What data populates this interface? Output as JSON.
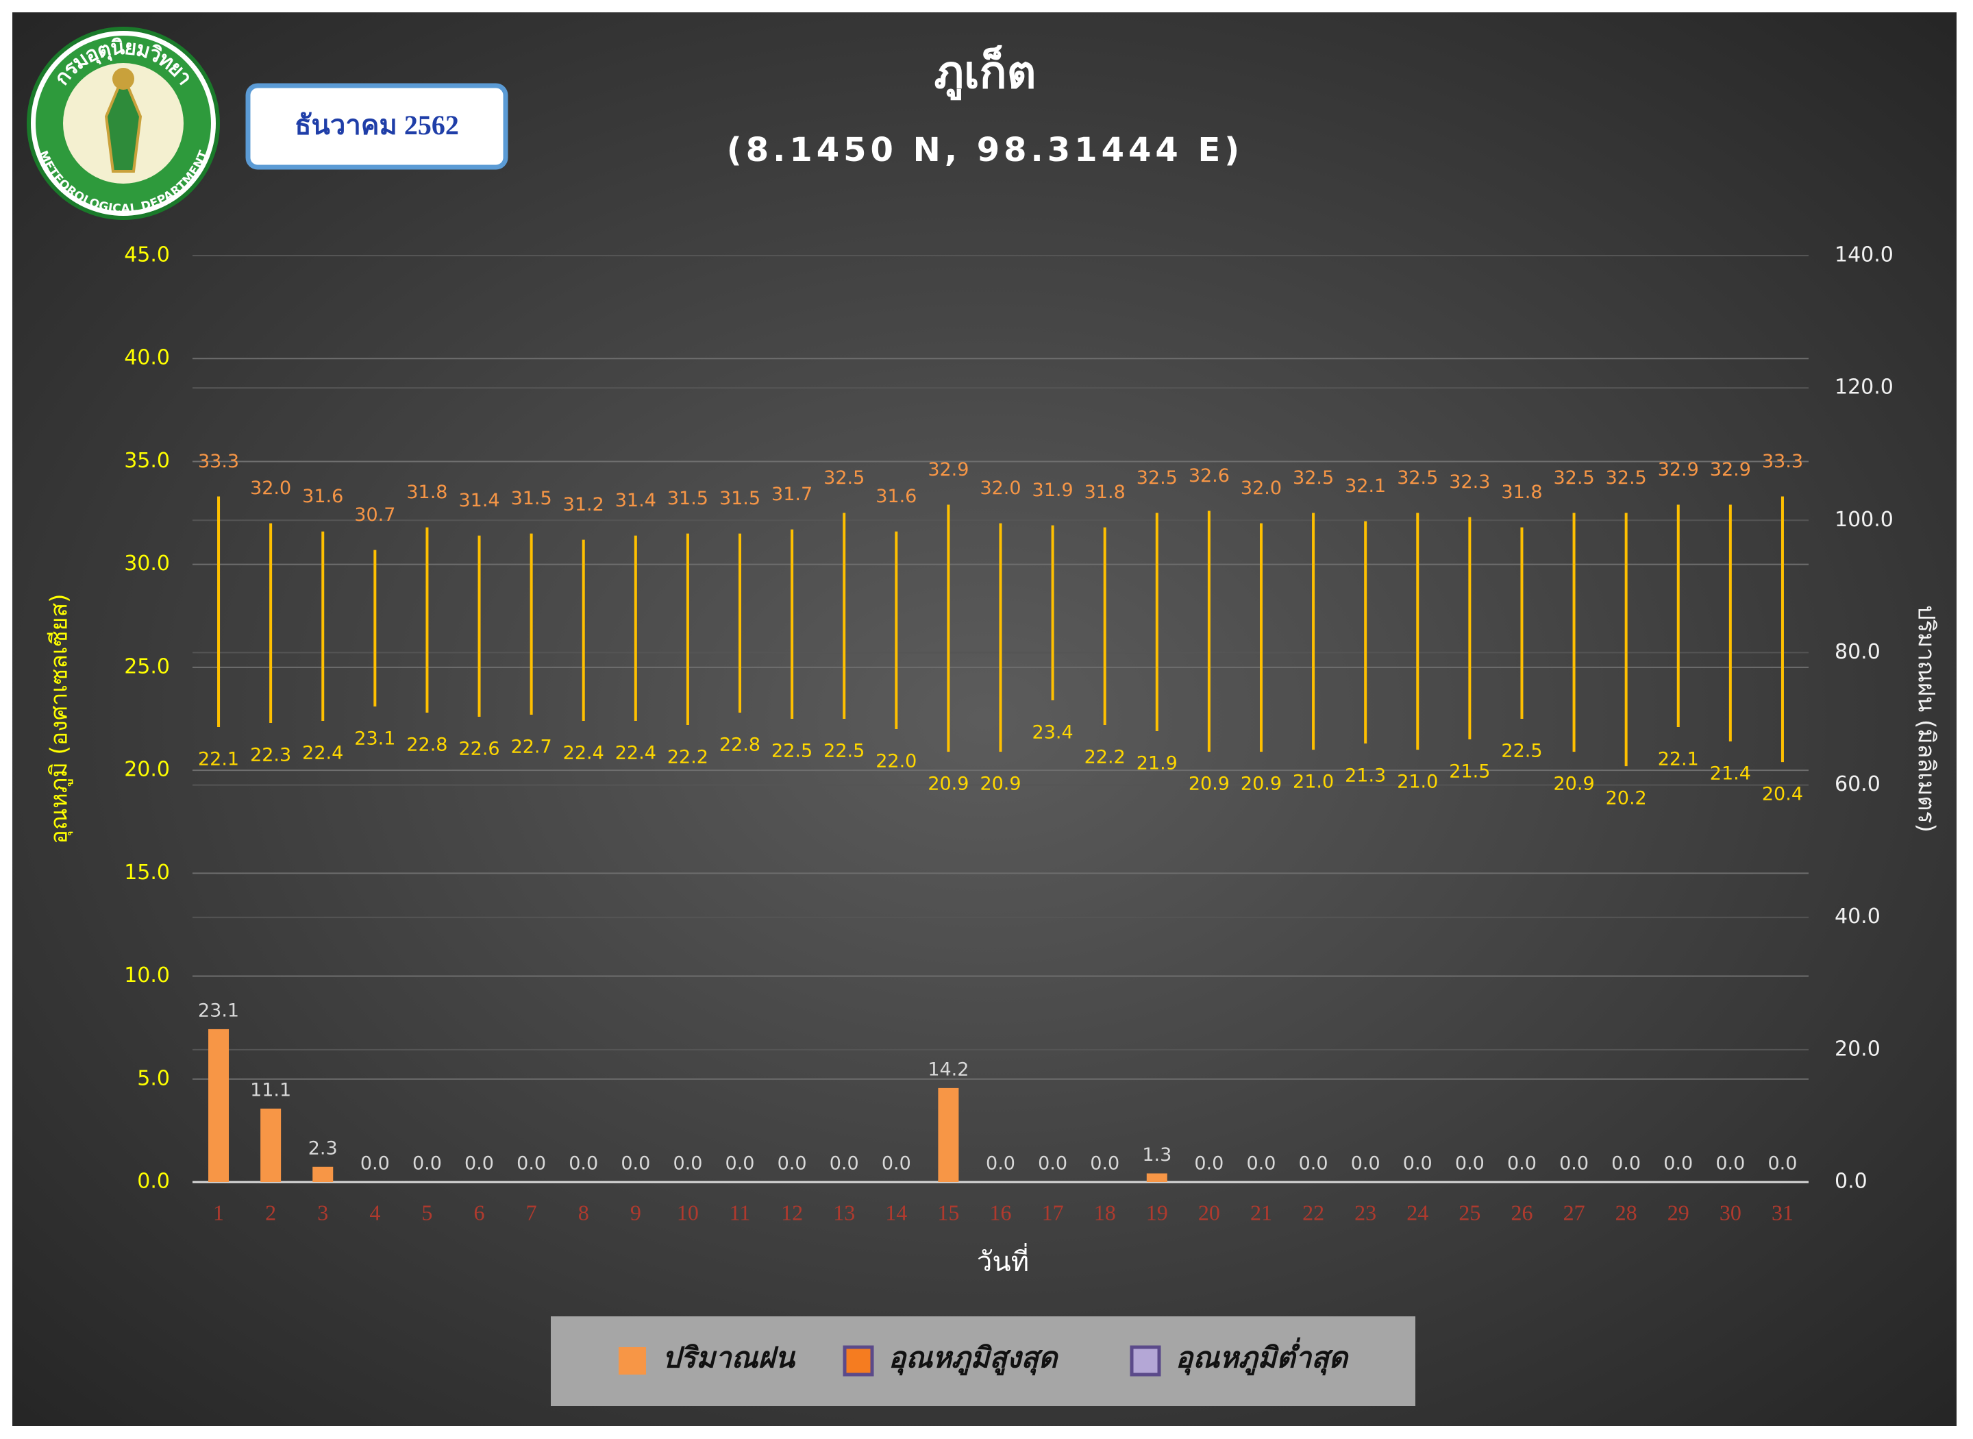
{
  "logo": {
    "top_text": "กรมอุตุนิยมวิทยา",
    "bottom_text": "METEOROLOGICAL DEPARTMENT"
  },
  "period": "ธันวาคม 2562",
  "chart_data": {
    "type": "combo",
    "title": "ภูเก็ต",
    "subtitle": "(8.1450 N, 98.31444 E)",
    "x_label": "วันที่",
    "y_label": "อุณหภูมิ (องศาเซลเซียส)",
    "y2_label": "ปริมาณฝน (มิลลิเมตร)",
    "categories": [
      "1",
      "2",
      "3",
      "4",
      "5",
      "6",
      "7",
      "8",
      "9",
      "10",
      "11",
      "12",
      "13",
      "14",
      "15",
      "16",
      "17",
      "18",
      "19",
      "20",
      "21",
      "22",
      "23",
      "24",
      "25",
      "26",
      "27",
      "28",
      "29",
      "30",
      "31"
    ],
    "ylim": [
      0,
      45
    ],
    "yticks": [
      {
        "value": 0,
        "label": "0.0"
      },
      {
        "value": 5,
        "label": "5.0"
      },
      {
        "value": 10,
        "label": "10.0"
      },
      {
        "value": 15,
        "label": "15.0"
      },
      {
        "value": 20,
        "label": "20.0"
      },
      {
        "value": 25,
        "label": "25.0"
      },
      {
        "value": 30,
        "label": "30.0"
      },
      {
        "value": 35,
        "label": "35.0"
      },
      {
        "value": 40,
        "label": "40.0"
      },
      {
        "value": 45,
        "label": "45.0"
      }
    ],
    "y2lim": [
      0,
      140
    ],
    "y2ticks": [
      {
        "value": 0,
        "label": "0.0"
      },
      {
        "value": 20,
        "label": "20.0"
      },
      {
        "value": 40,
        "label": "40.0"
      },
      {
        "value": 60,
        "label": "60.0"
      },
      {
        "value": 80,
        "label": "80.0"
      },
      {
        "value": 100,
        "label": "100.0"
      },
      {
        "value": 120,
        "label": "120.0"
      },
      {
        "value": 140,
        "label": "140.0"
      }
    ],
    "grid": true,
    "hilo_color": "#ffc000",
    "series": [
      {
        "name": "ปริมาณฝน",
        "type": "bar",
        "axis": "y2",
        "color": "#f79646",
        "label_color": "#d9d9d9",
        "values": [
          23.1,
          11.1,
          2.3,
          0,
          0,
          0,
          0,
          0,
          0,
          0,
          0,
          0,
          0,
          0,
          14.2,
          0,
          0,
          0,
          1.3,
          0,
          0,
          0,
          0,
          0,
          0,
          0,
          0,
          0,
          0,
          0,
          0
        ],
        "value_labels": [
          "23.1",
          "11.1",
          "2.3",
          "0.0",
          "0.0",
          "0.0",
          "0.0",
          "0.0",
          "0.0",
          "0.0",
          "0.0",
          "0.0",
          "0.0",
          "0.0",
          "14.2",
          "0.0",
          "0.0",
          "0.0",
          "1.3",
          "0.0",
          "0.0",
          "0.0",
          "0.0",
          "0.0",
          "0.0",
          "0.0",
          "0.0",
          "0.0",
          "0.0",
          "0.0",
          "0.0"
        ]
      },
      {
        "name": "อุณหภูมิสูงสุด",
        "type": "high",
        "color": "#f57c20",
        "label_color": "#f79646",
        "values": [
          33.3,
          32.0,
          31.6,
          30.7,
          31.8,
          31.4,
          31.5,
          31.2,
          31.4,
          31.5,
          31.5,
          31.7,
          32.5,
          31.6,
          32.9,
          32.0,
          31.9,
          31.8,
          32.5,
          32.6,
          32.0,
          32.5,
          32.1,
          32.5,
          32.3,
          31.8,
          32.5,
          32.5,
          32.9,
          32.9,
          33.3
        ],
        "value_labels": [
          "33.3",
          "32.0",
          "31.6",
          "30.7",
          "31.8",
          "31.4",
          "31.5",
          "31.2",
          "31.4",
          "31.5",
          "31.5",
          "31.7",
          "32.5",
          "31.6",
          "32.9",
          "32.0",
          "31.9",
          "31.8",
          "32.5",
          "32.6",
          "32.0",
          "32.5",
          "32.1",
          "32.5",
          "32.3",
          "31.8",
          "32.5",
          "32.5",
          "32.9",
          "32.9",
          "33.3"
        ]
      },
      {
        "name": "อุณหภูมิต่ำสุด",
        "type": "low",
        "color": "#b4a7d6",
        "label_color": "#ffd700",
        "values": [
          22.1,
          22.3,
          22.4,
          23.1,
          22.8,
          22.6,
          22.7,
          22.4,
          22.4,
          22.2,
          22.8,
          22.5,
          22.5,
          22.0,
          20.9,
          20.9,
          23.4,
          22.2,
          21.9,
          20.9,
          20.9,
          21.0,
          21.3,
          21.0,
          21.5,
          22.5,
          20.9,
          20.2,
          22.1,
          21.4,
          20.4
        ],
        "value_labels": [
          "22.1",
          "22.3",
          "22.4",
          "23.1",
          "22.8",
          "22.6",
          "22.7",
          "22.4",
          "22.4",
          "22.2",
          "22.8",
          "22.5",
          "22.5",
          "22.0",
          "20.9",
          "20.9",
          "23.4",
          "22.2",
          "21.9",
          "20.9",
          "20.9",
          "21.0",
          "21.3",
          "21.0",
          "21.5",
          "22.5",
          "20.9",
          "20.2",
          "22.1",
          "21.4",
          "20.4"
        ]
      }
    ]
  }
}
